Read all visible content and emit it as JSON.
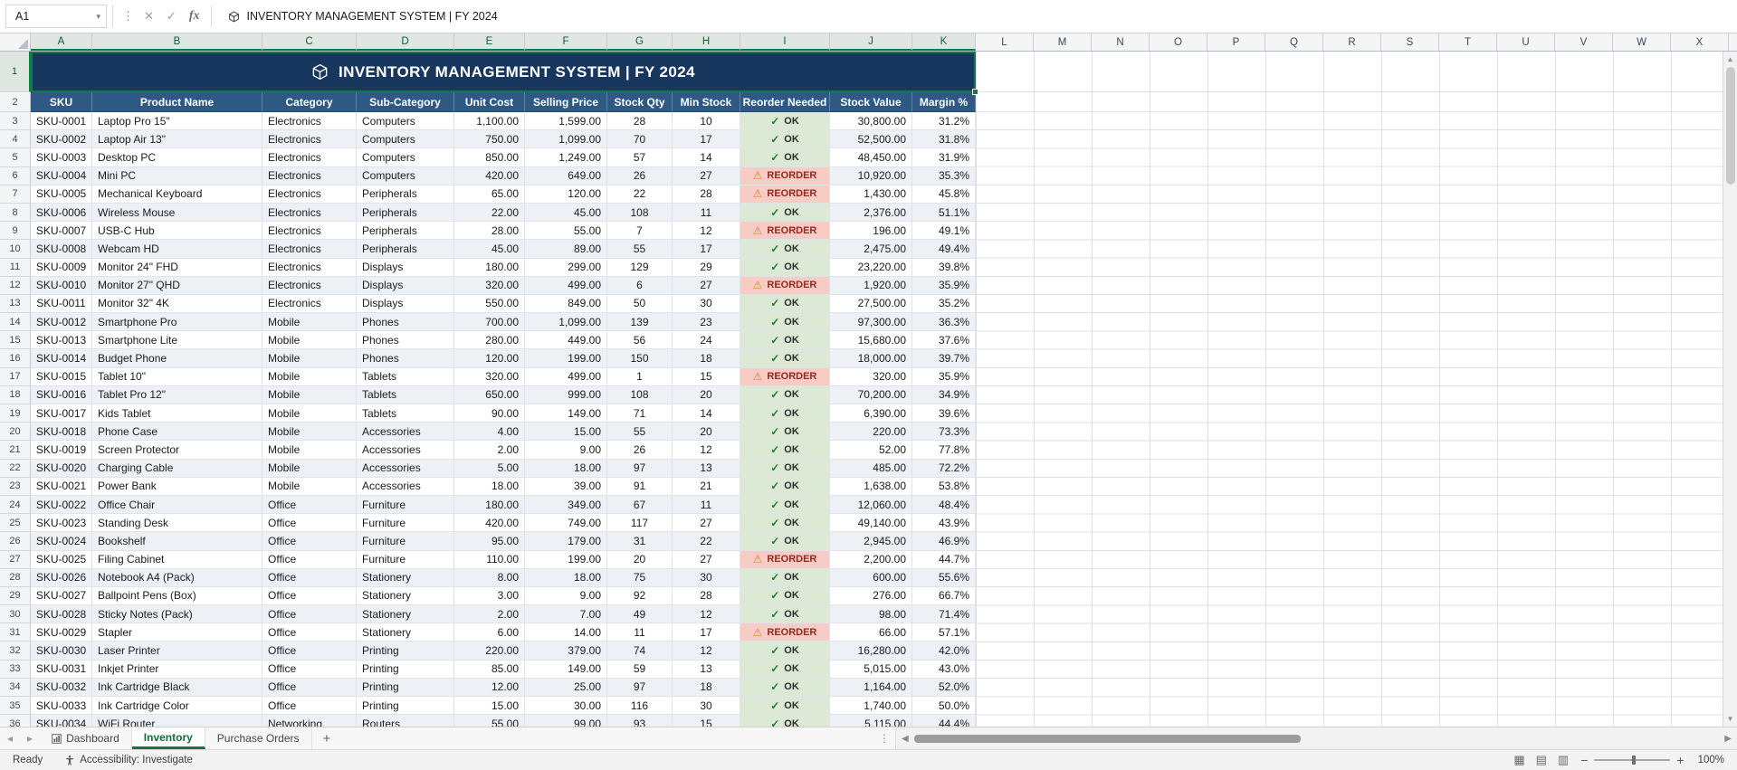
{
  "formula_bar": {
    "cell_ref": "A1",
    "fx": "fx",
    "value": "INVENTORY MANAGEMENT SYSTEM  |  FY 2024"
  },
  "sheet": {
    "title": "INVENTORY MANAGEMENT SYSTEM  |  FY 2024"
  },
  "grid": {
    "column_letters": [
      "A",
      "B",
      "C",
      "D",
      "E",
      "F",
      "G",
      "H",
      "I",
      "J",
      "K",
      "L",
      "M",
      "N",
      "O",
      "P",
      "Q",
      "R",
      "S",
      "T",
      "U",
      "V",
      "W",
      "X"
    ],
    "row_count": 36
  },
  "table": {
    "headers": [
      "SKU",
      "Product Name",
      "Category",
      "Sub-Category",
      "Unit Cost",
      "Selling Price",
      "Stock Qty",
      "Min Stock",
      "Reorder Needed",
      "Stock Value",
      "Margin %"
    ],
    "status": {
      "ok_icon": "✓",
      "ok_label": "OK",
      "reorder_icon": "⚠",
      "reorder_label": "REORDER"
    },
    "rows": [
      [
        "SKU-0001",
        "Laptop Pro 15\"",
        "Electronics",
        "Computers",
        "1,100.00",
        "1,599.00",
        "28",
        "10",
        "OK",
        "30,800.00",
        "31.2%"
      ],
      [
        "SKU-0002",
        "Laptop Air 13\"",
        "Electronics",
        "Computers",
        "750.00",
        "1,099.00",
        "70",
        "17",
        "OK",
        "52,500.00",
        "31.8%"
      ],
      [
        "SKU-0003",
        "Desktop PC",
        "Electronics",
        "Computers",
        "850.00",
        "1,249.00",
        "57",
        "14",
        "OK",
        "48,450.00",
        "31.9%"
      ],
      [
        "SKU-0004",
        "Mini PC",
        "Electronics",
        "Computers",
        "420.00",
        "649.00",
        "26",
        "27",
        "REORDER",
        "10,920.00",
        "35.3%"
      ],
      [
        "SKU-0005",
        "Mechanical Keyboard",
        "Electronics",
        "Peripherals",
        "65.00",
        "120.00",
        "22",
        "28",
        "REORDER",
        "1,430.00",
        "45.8%"
      ],
      [
        "SKU-0006",
        "Wireless Mouse",
        "Electronics",
        "Peripherals",
        "22.00",
        "45.00",
        "108",
        "11",
        "OK",
        "2,376.00",
        "51.1%"
      ],
      [
        "SKU-0007",
        "USB-C Hub",
        "Electronics",
        "Peripherals",
        "28.00",
        "55.00",
        "7",
        "12",
        "REORDER",
        "196.00",
        "49.1%"
      ],
      [
        "SKU-0008",
        "Webcam HD",
        "Electronics",
        "Peripherals",
        "45.00",
        "89.00",
        "55",
        "17",
        "OK",
        "2,475.00",
        "49.4%"
      ],
      [
        "SKU-0009",
        "Monitor 24\" FHD",
        "Electronics",
        "Displays",
        "180.00",
        "299.00",
        "129",
        "29",
        "OK",
        "23,220.00",
        "39.8%"
      ],
      [
        "SKU-0010",
        "Monitor 27\" QHD",
        "Electronics",
        "Displays",
        "320.00",
        "499.00",
        "6",
        "27",
        "REORDER",
        "1,920.00",
        "35.9%"
      ],
      [
        "SKU-0011",
        "Monitor 32\" 4K",
        "Electronics",
        "Displays",
        "550.00",
        "849.00",
        "50",
        "30",
        "OK",
        "27,500.00",
        "35.2%"
      ],
      [
        "SKU-0012",
        "Smartphone Pro",
        "Mobile",
        "Phones",
        "700.00",
        "1,099.00",
        "139",
        "23",
        "OK",
        "97,300.00",
        "36.3%"
      ],
      [
        "SKU-0013",
        "Smartphone Lite",
        "Mobile",
        "Phones",
        "280.00",
        "449.00",
        "56",
        "24",
        "OK",
        "15,680.00",
        "37.6%"
      ],
      [
        "SKU-0014",
        "Budget Phone",
        "Mobile",
        "Phones",
        "120.00",
        "199.00",
        "150",
        "18",
        "OK",
        "18,000.00",
        "39.7%"
      ],
      [
        "SKU-0015",
        "Tablet 10\"",
        "Mobile",
        "Tablets",
        "320.00",
        "499.00",
        "1",
        "15",
        "REORDER",
        "320.00",
        "35.9%"
      ],
      [
        "SKU-0016",
        "Tablet Pro 12\"",
        "Mobile",
        "Tablets",
        "650.00",
        "999.00",
        "108",
        "20",
        "OK",
        "70,200.00",
        "34.9%"
      ],
      [
        "SKU-0017",
        "Kids Tablet",
        "Mobile",
        "Tablets",
        "90.00",
        "149.00",
        "71",
        "14",
        "OK",
        "6,390.00",
        "39.6%"
      ],
      [
        "SKU-0018",
        "Phone Case",
        "Mobile",
        "Accessories",
        "4.00",
        "15.00",
        "55",
        "20",
        "OK",
        "220.00",
        "73.3%"
      ],
      [
        "SKU-0019",
        "Screen Protector",
        "Mobile",
        "Accessories",
        "2.00",
        "9.00",
        "26",
        "12",
        "OK",
        "52.00",
        "77.8%"
      ],
      [
        "SKU-0020",
        "Charging Cable",
        "Mobile",
        "Accessories",
        "5.00",
        "18.00",
        "97",
        "13",
        "OK",
        "485.00",
        "72.2%"
      ],
      [
        "SKU-0021",
        "Power Bank",
        "Mobile",
        "Accessories",
        "18.00",
        "39.00",
        "91",
        "21",
        "OK",
        "1,638.00",
        "53.8%"
      ],
      [
        "SKU-0022",
        "Office Chair",
        "Office",
        "Furniture",
        "180.00",
        "349.00",
        "67",
        "11",
        "OK",
        "12,060.00",
        "48.4%"
      ],
      [
        "SKU-0023",
        "Standing Desk",
        "Office",
        "Furniture",
        "420.00",
        "749.00",
        "117",
        "27",
        "OK",
        "49,140.00",
        "43.9%"
      ],
      [
        "SKU-0024",
        "Bookshelf",
        "Office",
        "Furniture",
        "95.00",
        "179.00",
        "31",
        "22",
        "OK",
        "2,945.00",
        "46.9%"
      ],
      [
        "SKU-0025",
        "Filing Cabinet",
        "Office",
        "Furniture",
        "110.00",
        "199.00",
        "20",
        "27",
        "REORDER",
        "2,200.00",
        "44.7%"
      ],
      [
        "SKU-0026",
        "Notebook A4 (Pack)",
        "Office",
        "Stationery",
        "8.00",
        "18.00",
        "75",
        "30",
        "OK",
        "600.00",
        "55.6%"
      ],
      [
        "SKU-0027",
        "Ballpoint Pens (Box)",
        "Office",
        "Stationery",
        "3.00",
        "9.00",
        "92",
        "28",
        "OK",
        "276.00",
        "66.7%"
      ],
      [
        "SKU-0028",
        "Sticky Notes (Pack)",
        "Office",
        "Stationery",
        "2.00",
        "7.00",
        "49",
        "12",
        "OK",
        "98.00",
        "71.4%"
      ],
      [
        "SKU-0029",
        "Stapler",
        "Office",
        "Stationery",
        "6.00",
        "14.00",
        "11",
        "17",
        "REORDER",
        "66.00",
        "57.1%"
      ],
      [
        "SKU-0030",
        "Laser Printer",
        "Office",
        "Printing",
        "220.00",
        "379.00",
        "74",
        "12",
        "OK",
        "16,280.00",
        "42.0%"
      ],
      [
        "SKU-0031",
        "Inkjet Printer",
        "Office",
        "Printing",
        "85.00",
        "149.00",
        "59",
        "13",
        "OK",
        "5,015.00",
        "43.0%"
      ],
      [
        "SKU-0032",
        "Ink Cartridge Black",
        "Office",
        "Printing",
        "12.00",
        "25.00",
        "97",
        "18",
        "OK",
        "1,164.00",
        "52.0%"
      ],
      [
        "SKU-0033",
        "Ink Cartridge Color",
        "Office",
        "Printing",
        "15.00",
        "30.00",
        "116",
        "30",
        "OK",
        "1,740.00",
        "50.0%"
      ],
      [
        "SKU-0034",
        "WiFi Router",
        "Networking",
        "Routers",
        "55.00",
        "99.00",
        "93",
        "15",
        "OK",
        "5,115.00",
        "44.4%"
      ]
    ]
  },
  "tabs": {
    "items": [
      {
        "label": "Dashboard",
        "active": false,
        "icon": "sheet-chart-icon"
      },
      {
        "label": "Inventory",
        "active": true
      },
      {
        "label": "Purchase Orders",
        "active": false
      }
    ],
    "add": "+"
  },
  "status_bar": {
    "ready": "Ready",
    "accessibility": "Accessibility: Investigate",
    "zoom": "100%"
  },
  "colors": {
    "title_bg": "#17375E",
    "header_bg": "#2E5984",
    "ok_bg": "#DCE9D5",
    "reorder_bg": "#F6CCC4",
    "selection_green": "#107C41",
    "alt_row": "#EDF1F6"
  }
}
